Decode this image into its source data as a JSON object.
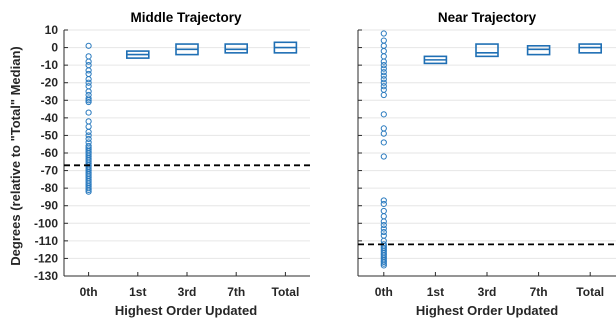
{
  "chart_data": [
    {
      "type": "scatter",
      "title": "Middle Trajectory",
      "xlabel": "Highest Order Updated",
      "ylabel": "Degrees (relative to \"Total\" Median)",
      "categories": [
        "0th",
        "1st",
        "3rd",
        "7th",
        "Total"
      ],
      "ylim": [
        -130,
        10
      ],
      "yticks": [
        10,
        0,
        -10,
        -20,
        -30,
        -40,
        -50,
        -60,
        -70,
        -80,
        -90,
        -100,
        -110,
        -120,
        -130
      ],
      "grid": true,
      "reference_line": -67,
      "scatter_points": {
        "category": "0th",
        "values": [
          1,
          -5,
          -8,
          -10,
          -13,
          -15,
          -18,
          -20,
          -22,
          -25,
          -27,
          -29,
          -30,
          -31,
          -37,
          -42,
          -45,
          -48,
          -50,
          -52,
          -54,
          -56,
          -57,
          -58,
          -59,
          -60,
          -61,
          -62,
          -63,
          -64,
          -65,
          -66,
          -67,
          -68,
          -69,
          -70,
          -71,
          -72,
          -73,
          -74,
          -75,
          -76,
          -77,
          -78,
          -79,
          -80,
          -81,
          -82
        ]
      },
      "boxes": [
        {
          "category": "1st",
          "q1": -6,
          "median": -4,
          "q3": -2
        },
        {
          "category": "3rd",
          "q1": -4,
          "median": -1,
          "q3": 2
        },
        {
          "category": "7th",
          "q1": -3,
          "median": -1,
          "q3": 2
        },
        {
          "category": "Total",
          "q1": -3,
          "median": 0,
          "q3": 3
        }
      ]
    },
    {
      "type": "scatter",
      "title": "Near Trajectory",
      "xlabel": "Highest Order Updated",
      "ylabel": "",
      "categories": [
        "0th",
        "1st",
        "3rd",
        "7th",
        "Total"
      ],
      "ylim": [
        -130,
        10
      ],
      "yticks": [],
      "grid": true,
      "reference_line": -112,
      "scatter_points": {
        "category": "0th",
        "values": [
          8,
          4,
          1,
          -2,
          -5,
          -8,
          -10,
          -12,
          -14,
          -16,
          -18,
          -20,
          -22,
          -24,
          -27,
          -38,
          -46,
          -49,
          -54,
          -62,
          -87,
          -89,
          -93,
          -96,
          -99,
          -101,
          -103,
          -105,
          -107,
          -110,
          -112,
          -113,
          -114,
          -115,
          -116,
          -117,
          -118,
          -119,
          -120,
          -121,
          -122,
          -123,
          -124
        ]
      },
      "boxes": [
        {
          "category": "1st",
          "q1": -9,
          "median": -7,
          "q3": -5
        },
        {
          "category": "3rd",
          "q1": -5,
          "median": -3,
          "q3": 2
        },
        {
          "category": "7th",
          "q1": -4,
          "median": -1,
          "q3": 1
        },
        {
          "category": "Total",
          "q1": -3,
          "median": 0,
          "q3": 2
        }
      ]
    }
  ],
  "colors": {
    "marker": "#2b7bbf",
    "box": "#1f6fb4",
    "reference": "#000000",
    "grid": "#e6e6e6"
  }
}
